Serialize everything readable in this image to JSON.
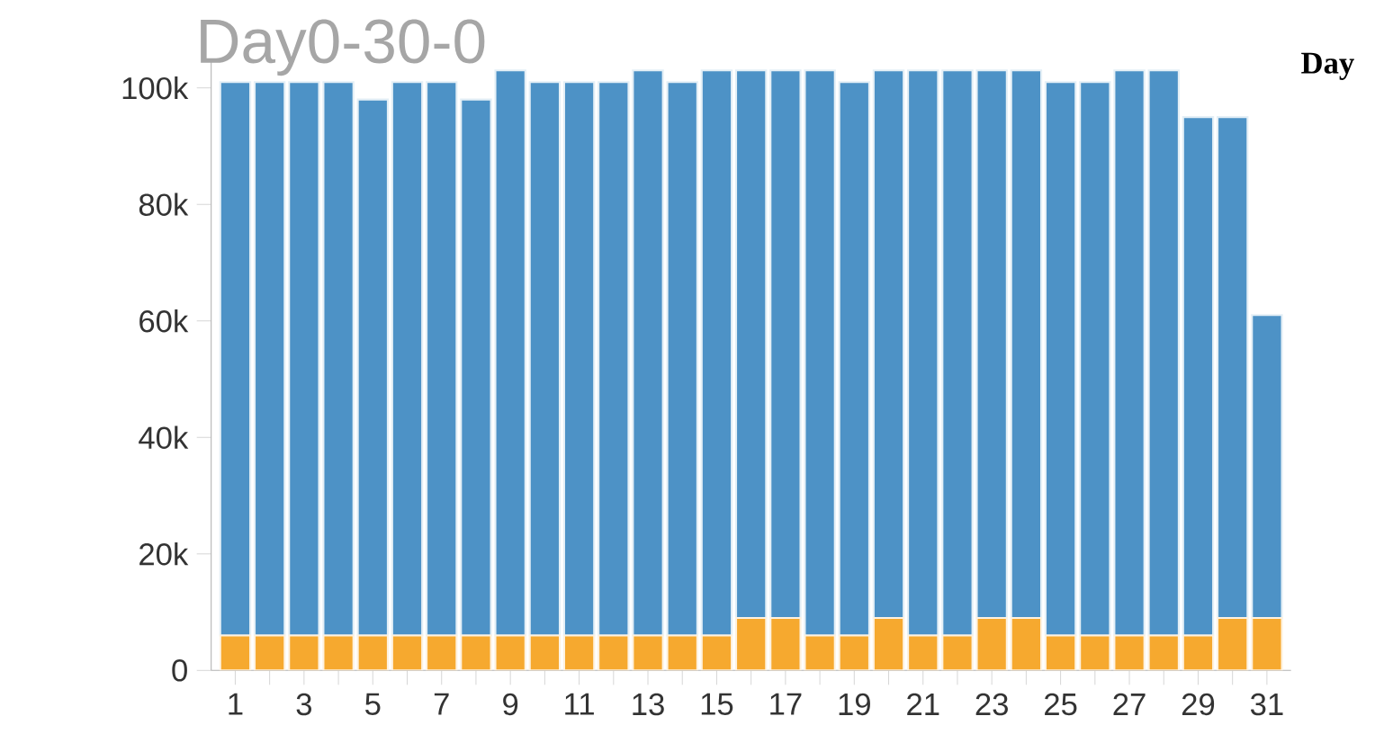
{
  "chart_data": {
    "type": "bar",
    "title": "Day0-30-0",
    "annotations": [
      "Day"
    ],
    "stacked": true,
    "categories": [
      "1",
      null,
      "3",
      null,
      "5",
      null,
      "7",
      null,
      "9",
      null,
      "11",
      null,
      "13",
      null,
      "15",
      null,
      "17",
      null,
      "19",
      null,
      "21",
      null,
      "23",
      null,
      "25",
      null,
      "27",
      null,
      "29",
      null,
      "31"
    ],
    "series": [
      {
        "color": "#f6a92f",
        "values": [
          6000,
          6000,
          6000,
          6000,
          6000,
          6000,
          6000,
          6000,
          6000,
          6000,
          6000,
          6000,
          6000,
          6000,
          6000,
          9000,
          9000,
          6000,
          6000,
          9000,
          6000,
          6000,
          9000,
          9000,
          6000,
          6000,
          6000,
          6000,
          6000,
          9000,
          9000
        ]
      },
      {
        "color": "#4d92c6",
        "values": [
          95000,
          95000,
          95000,
          95000,
          92000,
          95000,
          95000,
          92000,
          97000,
          95000,
          95000,
          95000,
          97000,
          95000,
          97000,
          94000,
          94000,
          97000,
          95000,
          94000,
          97000,
          97000,
          94000,
          94000,
          95000,
          95000,
          97000,
          97000,
          89000,
          86000,
          52000
        ]
      }
    ],
    "ylim": [
      0,
      105000
    ],
    "yticks": [
      {
        "value": 0,
        "label": "0"
      },
      {
        "value": 20000,
        "label": "20k"
      },
      {
        "value": 40000,
        "label": "40k"
      },
      {
        "value": 60000,
        "label": "60k"
      },
      {
        "value": 80000,
        "label": "80k"
      },
      {
        "value": 100000,
        "label": "100k"
      }
    ],
    "grid": false
  }
}
